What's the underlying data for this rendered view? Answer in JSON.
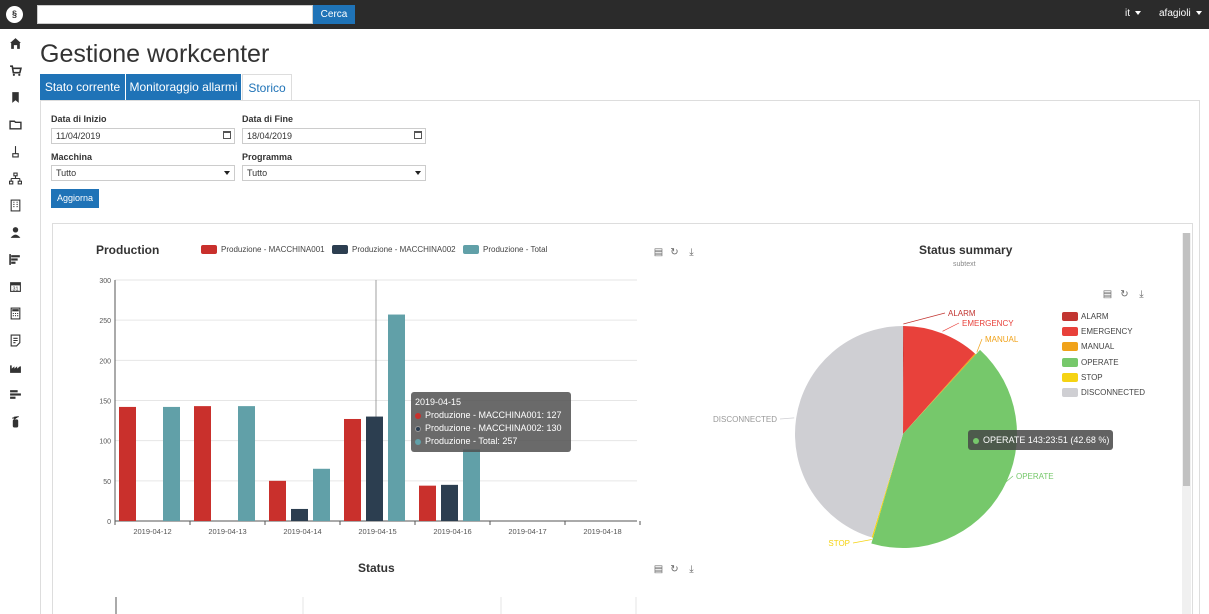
{
  "header": {
    "search_placeholder": "",
    "search_button": "Cerca",
    "language": "it",
    "user": "afagioli"
  },
  "sidebar": {
    "icons": [
      "home-icon",
      "cart-icon",
      "bookmark-icon",
      "folder-icon",
      "broom-icon",
      "sitemap-icon",
      "building-icon",
      "user-tie-icon",
      "bars-steps-icon",
      "calendar-icon",
      "calculator-icon",
      "document-icon",
      "industry-icon",
      "bar-list-icon",
      "fire-extinguisher-icon"
    ]
  },
  "page": {
    "title": "Gestione workcenter",
    "tabs": [
      {
        "label": "Stato corrente"
      },
      {
        "label": "Monitoraggio allarmi"
      },
      {
        "label": "Storico"
      }
    ]
  },
  "filters": {
    "start_label": "Data di Inizio",
    "start_value": "11/04/2019",
    "end_label": "Data di Fine",
    "end_value": "18/04/2019",
    "machine_label": "Macchina",
    "machine_value": "Tutto",
    "program_label": "Programma",
    "program_value": "Tutto",
    "update_button": "Aggiorna"
  },
  "production_chart": {
    "title": "Production",
    "tooltip": {
      "date": "2019-04-15",
      "lines": [
        "Produzione - MACCHINA001: 127",
        "Produzione - MACCHINA002: 130",
        "Produzione - Total: 257"
      ]
    }
  },
  "status_chart": {
    "title": "Status"
  },
  "summary_chart": {
    "title": "Status summary",
    "subtitle": "subtext",
    "tooltip": "OPERATE 143:23:51 (42.68 %)"
  },
  "chart_data": [
    {
      "type": "bar",
      "title": "Production",
      "categories": [
        "2019-04-12",
        "2019-04-13",
        "2019-04-14",
        "2019-04-15",
        "2019-04-16",
        "2019-04-17",
        "2019-04-18"
      ],
      "series": [
        {
          "name": "Produzione - MACCHINA001",
          "color": "#c9302c",
          "values": [
            142,
            143,
            50,
            127,
            44,
            0,
            0
          ]
        },
        {
          "name": "Produzione - MACCHINA002",
          "color": "#2c3e50",
          "values": [
            0,
            0,
            15,
            130,
            45,
            0,
            0
          ]
        },
        {
          "name": "Produzione - Total",
          "color": "#61a0a8",
          "values": [
            142,
            143,
            65,
            257,
            89,
            0,
            0
          ]
        }
      ],
      "ylim": [
        0,
        300
      ],
      "yticks": [
        0,
        50,
        100,
        150,
        200,
        250,
        300
      ],
      "legend": "top"
    },
    {
      "type": "pie",
      "title": "Status summary",
      "subtitle": "subtext",
      "slices": [
        {
          "name": "ALARM",
          "color": "#c23531",
          "value": 0.1
        },
        {
          "name": "EMERGENCY",
          "color": "#e8413b",
          "value": 11.5
        },
        {
          "name": "MANUAL",
          "color": "#f0a21a",
          "value": 0.2
        },
        {
          "name": "OPERATE",
          "color": "#76c86b",
          "value": 42.68
        },
        {
          "name": "STOP",
          "color": "#f5d313",
          "value": 0.2
        },
        {
          "name": "DISCONNECTED",
          "color": "#cfcfd3",
          "value": 45.32
        }
      ],
      "legend": "right"
    }
  ]
}
